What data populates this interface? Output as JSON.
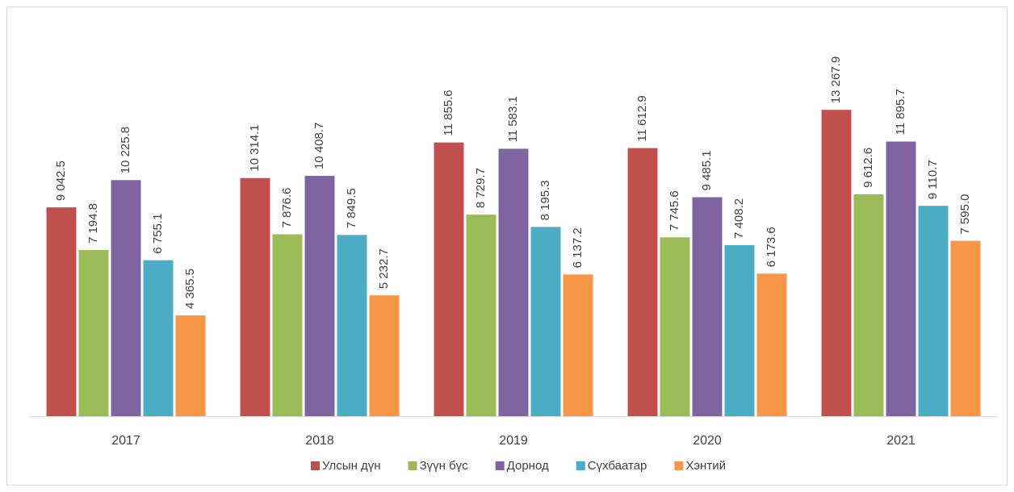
{
  "chart_data": {
    "type": "bar",
    "categories": [
      "2017",
      "2018",
      "2019",
      "2020",
      "2021"
    ],
    "series": [
      {
        "name": "Улсын дүн",
        "color": "#c0504d",
        "values": [
          9042.5,
          10314.1,
          11855.6,
          11612.9,
          13267.9
        ],
        "value_labels": [
          "9 042.5",
          "10 314.1",
          "11 855.6",
          "11 612.9",
          "13 267.9"
        ]
      },
      {
        "name": "Зүүн бүс",
        "color": "#9bbb59",
        "values": [
          7194.8,
          7876.6,
          8729.7,
          7745.6,
          9612.6
        ],
        "value_labels": [
          "7 194.8",
          "7 876.6",
          "8 729.7",
          "7 745.6",
          "9 612.6"
        ]
      },
      {
        "name": "Дорнод",
        "color": "#8064a2",
        "values": [
          10225.8,
          10408.7,
          11583.1,
          9485.1,
          11895.7
        ],
        "value_labels": [
          "10 225.8",
          "10 408.7",
          "11 583.1",
          "9 485.1",
          "11 895.7"
        ]
      },
      {
        "name": "Сүхбаатар",
        "color": "#4bacc6",
        "values": [
          6755.1,
          7849.5,
          8195.3,
          7408.2,
          9110.7
        ],
        "value_labels": [
          "6 755.1",
          "7 849.5",
          "8 195.3",
          "7 408.2",
          "9 110.7"
        ]
      },
      {
        "name": "Хэнтий",
        "color": "#f79646",
        "values": [
          4365.5,
          5232.7,
          6137.2,
          6173.6,
          7595.0
        ],
        "value_labels": [
          "4 365.5",
          "5 232.7",
          "6 137.2",
          "6 173.6",
          "7 595.0"
        ]
      }
    ],
    "ylim": [
      0,
      16000
    ],
    "legend": "bottom"
  }
}
